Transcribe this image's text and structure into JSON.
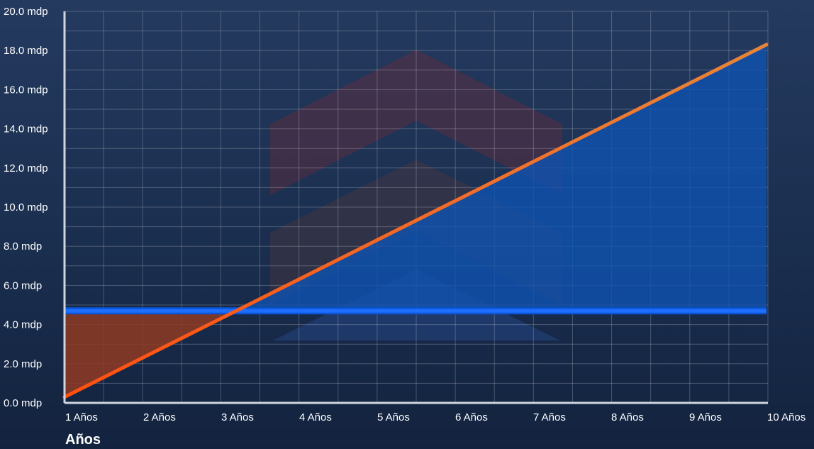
{
  "chart_data": {
    "type": "line",
    "xlabel": "Años",
    "ylabel": "",
    "categories": [
      "1 Años",
      "2 Años",
      "3 Años",
      "4 Años",
      "5 Años",
      "6 Años",
      "7 Años",
      "8 Años",
      "9 Años",
      "10 Años"
    ],
    "x": [
      1,
      2,
      3,
      4,
      5,
      6,
      7,
      8,
      9,
      10
    ],
    "y_ticks": [
      "0.0 mdp",
      "2.0 mdp",
      "4.0 mdp",
      "6.0 mdp",
      "8.0 mdp",
      "10.0 mdp",
      "12.0 mdp",
      "14.0 mdp",
      "16.0 mdp",
      "18.0 mdp",
      "20.0 mdp"
    ],
    "ylim": [
      0,
      20
    ],
    "xlim": [
      1,
      10
    ],
    "grid": true,
    "series": [
      {
        "values": [
          0.3,
          2.3,
          4.3,
          6.3,
          8.3,
          10.3,
          12.3,
          14.3,
          16.3,
          18.3
        ],
        "color": "#ff5a1f"
      },
      {
        "values": [
          4.7,
          4.7,
          4.7,
          4.7,
          4.7,
          4.7,
          4.7,
          4.7,
          4.7,
          4.7
        ],
        "color": "#1e6fff"
      }
    ],
    "fill_colors": {
      "below_crossover": "#8f3a22",
      "above_crossover": "#0f53b0"
    }
  }
}
